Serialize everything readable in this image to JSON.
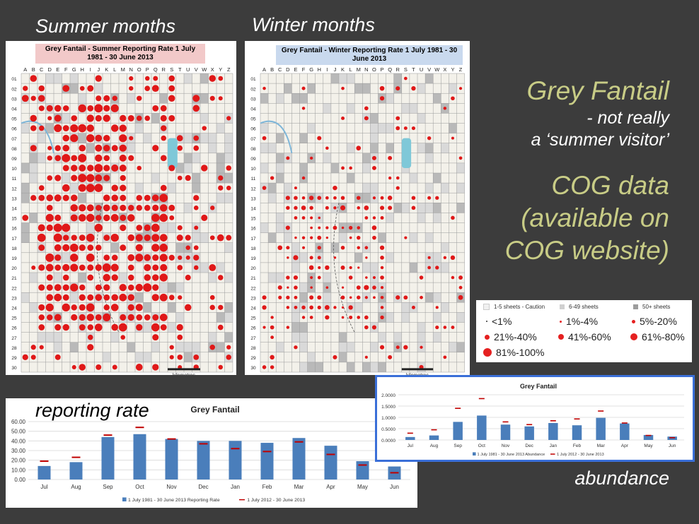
{
  "headings": {
    "summer": "Summer months",
    "winter": "Winter months",
    "reporting": "reporting rate",
    "abundance": "abundance"
  },
  "maps": {
    "summer_title": "Grey Fantail - Summer Reporting Rate 1 July 1981 - 30 June 2013",
    "winter_title": "Grey Fantail - Winter Reporting Rate 1 July 1981 - 30 June 2013",
    "columns": [
      "A",
      "B",
      "C",
      "D",
      "E",
      "F",
      "G",
      "H",
      "I",
      "J",
      "K",
      "L",
      "M",
      "N",
      "O",
      "P",
      "Q",
      "R",
      "S",
      "T",
      "U",
      "V",
      "W",
      "X",
      "Y",
      "Z"
    ],
    "rows": [
      "01",
      "02",
      "03",
      "04",
      "05",
      "06",
      "07",
      "08",
      "09",
      "10",
      "11",
      "12",
      "13",
      "14",
      "15",
      "16",
      "17",
      "18",
      "19",
      "20",
      "21",
      "22",
      "23",
      "24",
      "25",
      "26",
      "27",
      "28",
      "29",
      "30"
    ],
    "scale_label": "kilometres"
  },
  "right_text": {
    "line1": "Grey Fantail",
    "line2": "- not really",
    "line3": "a ‘summer visitor’",
    "cog1": "COG data",
    "cog2": "(available on",
    "cog3": "COG website)"
  },
  "legend": {
    "sheets": [
      "1-5 sheets - Caution",
      "6-49 sheets",
      "50+ sheets"
    ],
    "rates": [
      "<1%",
      "1%-4%",
      "5%-20%",
      "21%-40%",
      "41%-60%",
      "61%-80%",
      "81%-100%"
    ]
  },
  "colors": {
    "background": "#3c3c3c",
    "accent_text": "#c8cc86",
    "bar": "#4a7ebb",
    "marker": "#c00000",
    "dot": "#e52020"
  },
  "chart_data": [
    {
      "type": "bar",
      "title": "Grey Fantail",
      "categories": [
        "Jul",
        "Aug",
        "Sep",
        "Oct",
        "Nov",
        "Dec",
        "Jan",
        "Feb",
        "Mar",
        "Apr",
        "May",
        "Jun"
      ],
      "series": [
        {
          "name": "1 July 1981 - 30 June 2013 Reporting Rate",
          "values": [
            14,
            18,
            44,
            47,
            42,
            40,
            40,
            38,
            43,
            35,
            19,
            13.5
          ]
        },
        {
          "name": "1 July 2012 - 30 June 2013",
          "values": [
            19,
            23,
            46,
            54,
            42,
            37,
            32,
            29,
            39,
            26,
            15,
            7
          ]
        }
      ],
      "ylim": [
        0,
        60
      ],
      "yticks": [
        "0.00",
        "10.00",
        "20.00",
        "30.00",
        "40.00",
        "50.00",
        "60.00"
      ],
      "grid": true,
      "legend": "bottom"
    },
    {
      "type": "bar",
      "title": "Grey Fantail",
      "categories": [
        "Jul",
        "Aug",
        "Sep",
        "Oct",
        "Nov",
        "Dec",
        "Jan",
        "Feb",
        "Mar",
        "Apr",
        "May",
        "Jun"
      ],
      "series": [
        {
          "name": "1 July 1981 - 30 June 2013 Abundance",
          "values": [
            0.13,
            0.2,
            0.8,
            1.08,
            0.68,
            0.6,
            0.75,
            0.65,
            0.98,
            0.73,
            0.22,
            0.15
          ]
        },
        {
          "name": "1 July 2012 - 30 June 2013",
          "values": [
            0.3,
            0.45,
            1.4,
            1.83,
            0.8,
            0.68,
            0.85,
            0.93,
            1.28,
            0.75,
            0.2,
            0.1
          ]
        }
      ],
      "ylim": [
        0,
        2
      ],
      "yticks": [
        "0.0000",
        "0.5000",
        "1.0000",
        "1.5000",
        "2.0000"
      ],
      "grid": true,
      "legend": "bottom"
    }
  ]
}
